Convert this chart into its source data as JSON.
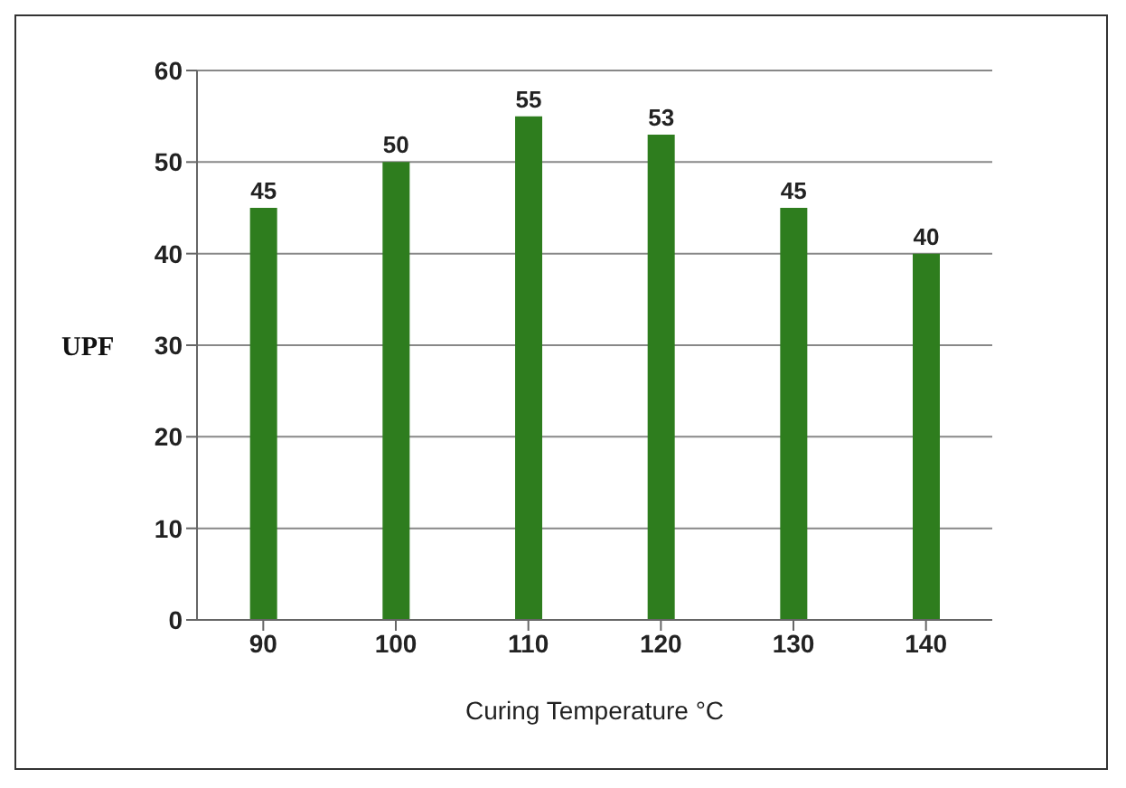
{
  "chart_data": {
    "type": "bar",
    "categories": [
      "90",
      "100",
      "110",
      "120",
      "130",
      "140"
    ],
    "values": [
      45,
      50,
      55,
      53,
      45,
      40
    ],
    "color": "#2e7d1e",
    "xlabel": "Curing Temperature °C",
    "ylabel": "UPF",
    "ylim": [
      0,
      60
    ],
    "yticks": [
      0,
      10,
      20,
      30,
      40,
      50,
      60
    ],
    "grid": "y",
    "data_labels": true
  }
}
